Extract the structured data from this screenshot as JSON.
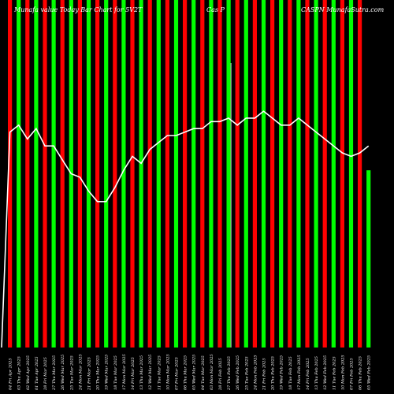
{
  "header": {
    "left": "Munafa value Today Bar Chart for 5V2T",
    "middle": "Cas P",
    "right": "CASPN MunafaSutra.com"
  },
  "colors": {
    "background": "#000000",
    "up": "#00ff00",
    "down": "#ff0000",
    "line": "#ffffff",
    "divider": "#ffffff"
  },
  "chart_data": {
    "type": "bar",
    "title": "Munafa value Today Bar Chart for 5V2T",
    "bar_ylim": [
      0,
      100
    ],
    "line_ylim": [
      0,
      100
    ],
    "categories": [
      "04 Fri Apr 2025",
      "03 Thu Apr 2025",
      "02 Wed Apr 2025",
      "01 Tue Apr 2025",
      "28 Fri Mar 2025",
      "27 Thu Mar 2025",
      "26 Wed Mar 2025",
      "25 Tue Mar 2025",
      "24 Mon Mar 2025",
      "21 Fri Mar 2025",
      "20 Thu Mar 2025",
      "19 Wed Mar 2025",
      "18 Tue Mar 2025",
      "17 Mon Mar 2025",
      "14 Fri Mar 2025",
      "13 Thu Mar 2025",
      "12 Wed Mar 2025",
      "11 Tue Mar 2025",
      "10 Mon Mar 2025",
      "07 Fri Mar 2025",
      "06 Thu Mar 2025",
      "05 Wed Mar 2025",
      "04 Tue Mar 2025",
      "03 Mon Mar 2025",
      "28 Fri Feb 2025",
      "27 Thu Feb 2025",
      "26 Wed Feb 2025",
      "25 Tue Feb 2025",
      "24 Mon Feb 2025",
      "21 Fri Feb 2025",
      "20 Thu Feb 2025",
      "19 Wed Feb 2025",
      "18 Tue Feb 2025",
      "17 Mon Feb 2025",
      "14 Fri Feb 2025",
      "13 Thu Feb 2025",
      "12 Wed Feb 2025",
      "11 Tue Feb 2025",
      "10 Mon Feb 2025",
      "07 Fri Feb 2025",
      "06 Thu Feb 2025",
      "05 Wed Feb 2025"
    ],
    "series": [
      {
        "values": [
          100,
          100,
          100,
          100,
          100,
          100,
          100,
          100,
          100,
          100,
          100,
          100,
          100,
          100,
          100,
          100,
          100,
          100,
          100,
          100,
          100,
          100,
          100,
          100,
          100,
          100,
          100,
          100,
          100,
          100,
          100,
          100,
          100,
          100,
          100,
          100,
          100,
          100,
          100,
          100,
          100,
          51
        ],
        "directions": [
          "down",
          "up",
          "down",
          "up",
          "down",
          "up",
          "down",
          "up",
          "down",
          "up",
          "down",
          "up",
          "down",
          "up",
          "down",
          "up",
          "down",
          "up",
          "down",
          "up",
          "down",
          "up",
          "down",
          "up",
          "down",
          "up",
          "down",
          "up",
          "down",
          "up",
          "down",
          "up",
          "down",
          "up",
          "down",
          "up",
          "down",
          "up",
          "down",
          "up",
          "down",
          "up"
        ]
      },
      {
        "values": [
          62,
          64,
          60,
          63,
          58,
          58,
          54,
          50,
          49,
          45,
          42,
          42,
          46,
          51,
          55,
          53,
          57,
          59,
          61,
          61,
          62,
          63,
          63,
          65,
          65,
          66,
          64,
          66,
          66,
          68,
          66,
          64,
          64,
          66,
          64,
          62,
          60,
          58,
          56,
          55,
          56,
          58
        ]
      }
    ]
  }
}
